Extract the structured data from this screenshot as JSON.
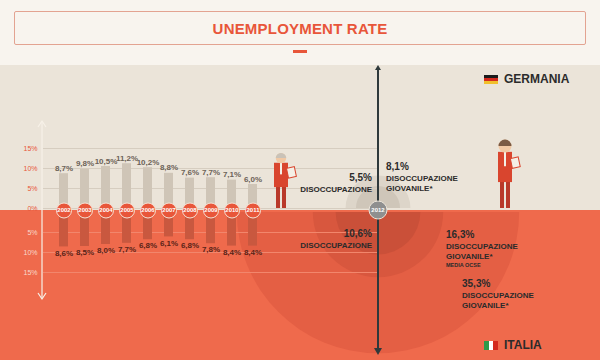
{
  "title": "UNEMPLOYMENT RATE",
  "annotation_category": "2012",
  "chart_data": [
    {
      "type": "bar",
      "title": "GERMANIA",
      "categories": [
        "2002",
        "2003",
        "2004",
        "2005",
        "2006",
        "2007",
        "2008",
        "2009",
        "2010",
        "2011"
      ],
      "values": [
        8.7,
        9.8,
        10.5,
        11.2,
        10.2,
        8.8,
        7.6,
        7.7,
        7.1,
        6.0
      ],
      "value_labels": [
        "8,7%",
        "9,8%",
        "10,5%",
        "11,2%",
        "10,2%",
        "8,8%",
        "7,6%",
        "7,7%",
        "7,1%",
        "6,0%"
      ],
      "color": "#cfc5b7",
      "ylim": [
        0,
        15
      ],
      "yticks": [
        {
          "value": 0,
          "label": "0%"
        },
        {
          "value": 5,
          "label": "5%"
        },
        {
          "value": 10,
          "label": "10%"
        },
        {
          "value": 15,
          "label": "15%"
        }
      ],
      "grid": true,
      "data_labels": true,
      "annotations": [
        {
          "value": 5.5,
          "label": "5,5%",
          "text": "DISOCCUPAZIONE"
        },
        {
          "value": 8.1,
          "label": "8,1%",
          "text": "DISOCCUPAZIONE GIOVANILE*"
        }
      ]
    },
    {
      "type": "bar",
      "title": "ITALIA",
      "categories": [
        "2002",
        "2003",
        "2004",
        "2005",
        "2006",
        "2007",
        "2008",
        "2009",
        "2010",
        "2011"
      ],
      "values": [
        8.6,
        8.5,
        8.0,
        7.7,
        6.8,
        6.1,
        6.8,
        7.8,
        8.4,
        8.4
      ],
      "value_labels": [
        "8,6%",
        "8,5%",
        "8,0%",
        "7,7%",
        "6,8%",
        "6,1%",
        "6,8%",
        "7,8%",
        "8,4%",
        "8,4%"
      ],
      "color": "#c9583f",
      "ylim": [
        15,
        0
      ],
      "yticks": [
        {
          "value": 5,
          "label": "5%"
        },
        {
          "value": 10,
          "label": "10%"
        },
        {
          "value": 15,
          "label": "15%"
        }
      ],
      "grid": true,
      "data_labels": true,
      "annotations": [
        {
          "value": 10.6,
          "label": "10,6%",
          "text": "DISOCCUPAZIONE"
        },
        {
          "value": 16.3,
          "label": "16,3%",
          "text": "DISOCCUPAZIONE GIOVANILE*",
          "note": "MEDIA OCSE"
        },
        {
          "value": 35.3,
          "label": "35,3%",
          "text": "DISOCCUPAZIONE GIOVANILE*"
        }
      ]
    }
  ]
}
